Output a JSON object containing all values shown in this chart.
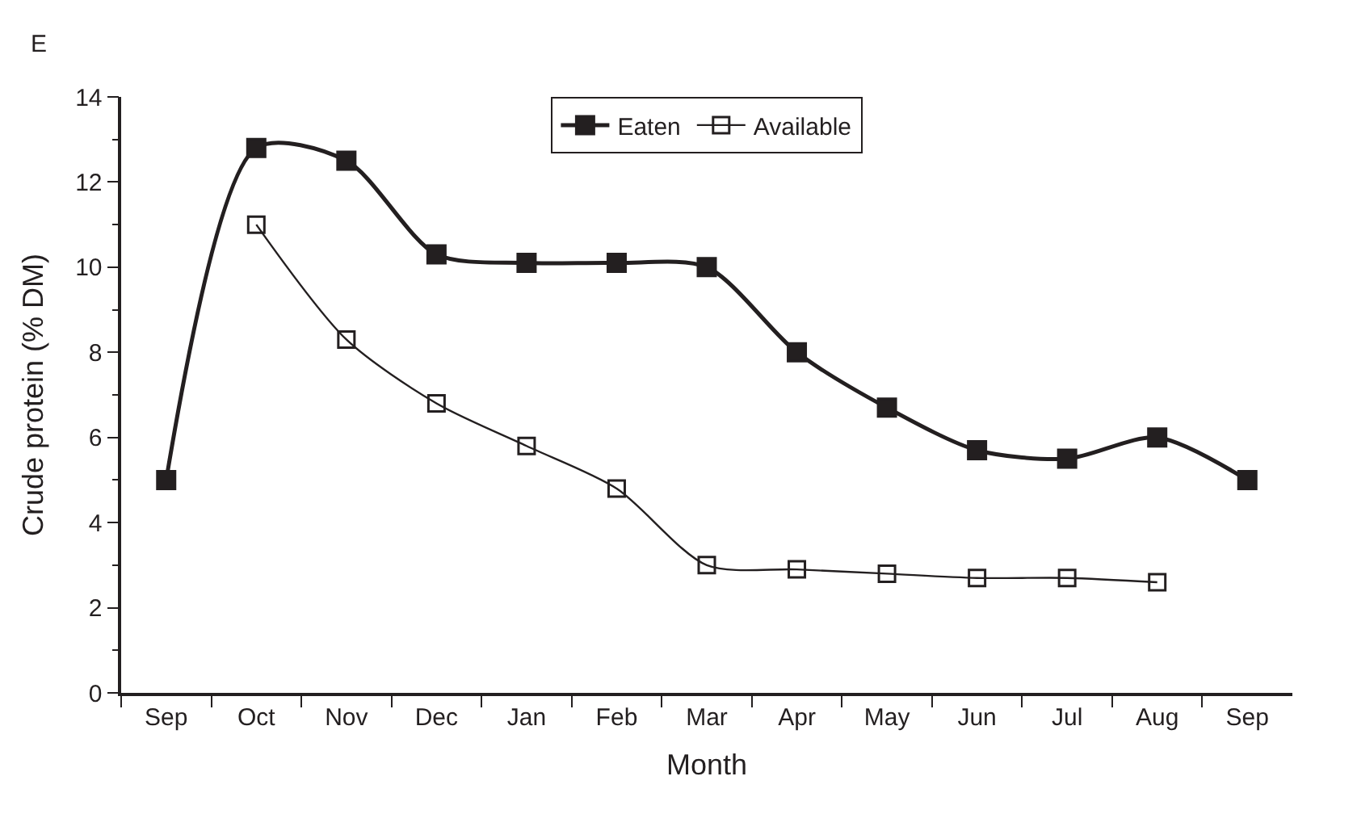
{
  "chart_data": {
    "type": "line",
    "xlabel": "Month",
    "ylabel": "Crude protein (% DM)",
    "annotations": [
      "E"
    ],
    "categories": [
      "Sep",
      "Oct",
      "Nov",
      "Dec",
      "Jan",
      "Feb",
      "Mar",
      "Apr",
      "May",
      "Jun",
      "Jul",
      "Aug",
      "Sep"
    ],
    "series": [
      {
        "name": "Eaten",
        "color": "#231f20",
        "values": [
          5.0,
          12.8,
          12.5,
          10.3,
          10.1,
          10.1,
          10.0,
          8.0,
          6.7,
          5.7,
          5.5,
          6.0,
          5.0
        ]
      },
      {
        "name": "Available",
        "color": "#231f20",
        "values": [
          null,
          11.0,
          8.3,
          6.8,
          5.8,
          4.8,
          3.0,
          2.9,
          2.8,
          2.7,
          2.7,
          2.6,
          null
        ]
      }
    ],
    "ylim": [
      0,
      14
    ],
    "yticks": [
      0,
      2,
      4,
      6,
      8,
      10,
      12,
      14
    ],
    "legend": "top",
    "marker": "square",
    "line_style": "solid"
  }
}
